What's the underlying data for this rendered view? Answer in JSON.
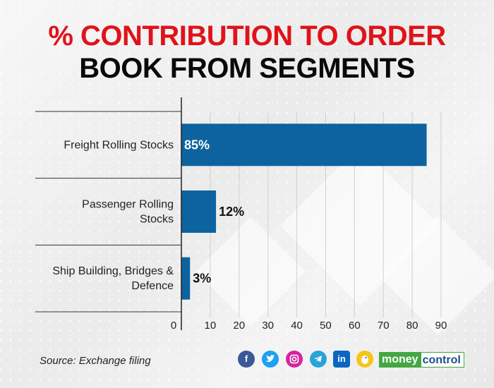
{
  "title": {
    "line1": "% CONTRIBUTION TO ORDER",
    "line2": "BOOK FROM SEGMENTS"
  },
  "chart_data": {
    "type": "bar",
    "orientation": "horizontal",
    "categories": [
      [
        "Freight Rolling Stocks"
      ],
      [
        "Passenger Rolling",
        "Stocks"
      ],
      [
        "Ship Building, Bridges &",
        "Defence"
      ]
    ],
    "values": [
      85,
      12,
      3
    ],
    "data_labels": [
      "85%",
      "12%",
      "3%"
    ],
    "xlim": [
      0,
      90
    ],
    "xticks": [
      0,
      10,
      20,
      30,
      40,
      50,
      60,
      70,
      80,
      90
    ],
    "grid": true,
    "bar_color": "#0d63a0",
    "label_inside_color": "#ffffff",
    "label_outside_color": "#111111"
  },
  "footer": {
    "source": "Source: Exchange filing",
    "social_icons": [
      "facebook-icon",
      "twitter-icon",
      "instagram-icon",
      "telegram-icon",
      "linkedin-icon",
      "koo-icon"
    ],
    "brand_part1": "money",
    "brand_part2": "control"
  }
}
